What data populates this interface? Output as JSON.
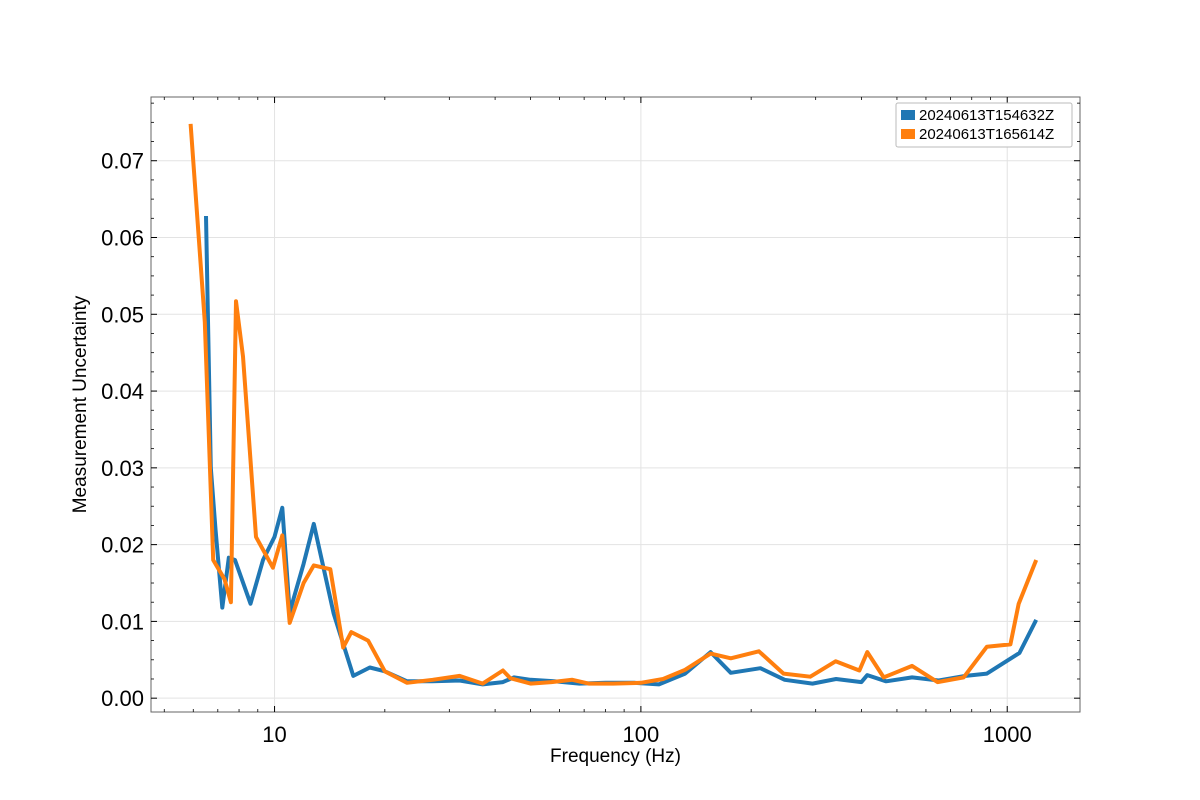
{
  "chart_data": {
    "type": "line",
    "xlabel": "Frequency (Hz)",
    "ylabel": "Measurement Uncertainty",
    "x_scale": "log",
    "xlim": [
      4.6,
      1580
    ],
    "ylim": [
      -0.0018,
      0.0783
    ],
    "grid": true,
    "legend_position": "top-right",
    "x_ticks": [
      {
        "value": 10,
        "label": "10"
      },
      {
        "value": 100,
        "label": "100"
      },
      {
        "value": 1000,
        "label": "1000"
      }
    ],
    "y_ticks": [
      {
        "value": 0.0,
        "label": "0.00"
      },
      {
        "value": 0.01,
        "label": "0.01"
      },
      {
        "value": 0.02,
        "label": "0.02"
      },
      {
        "value": 0.03,
        "label": "0.03"
      },
      {
        "value": 0.04,
        "label": "0.04"
      },
      {
        "value": 0.05,
        "label": "0.05"
      },
      {
        "value": 0.06,
        "label": "0.06"
      },
      {
        "value": 0.07,
        "label": "0.07"
      }
    ],
    "series": [
      {
        "name": "20240613T154632Z",
        "color": "#1f77b4",
        "points": [
          [
            6.5,
            0.0628
          ],
          [
            6.7,
            0.03
          ],
          [
            6.9,
            0.022
          ],
          [
            7.2,
            0.0118
          ],
          [
            7.5,
            0.0183
          ],
          [
            7.8,
            0.018
          ],
          [
            8.6,
            0.0123
          ],
          [
            9.3,
            0.018
          ],
          [
            10.0,
            0.021
          ],
          [
            10.5,
            0.0248
          ],
          [
            11.0,
            0.0112
          ],
          [
            12.0,
            0.0175
          ],
          [
            12.8,
            0.0227
          ],
          [
            14.5,
            0.011
          ],
          [
            16.4,
            0.0029
          ],
          [
            18.2,
            0.004
          ],
          [
            20.0,
            0.0035
          ],
          [
            23.0,
            0.0022
          ],
          [
            27.0,
            0.0022
          ],
          [
            32.0,
            0.0023
          ],
          [
            37.0,
            0.0018
          ],
          [
            42.0,
            0.0021
          ],
          [
            45.0,
            0.0027
          ],
          [
            50.0,
            0.0024
          ],
          [
            58.0,
            0.0022
          ],
          [
            68.0,
            0.0019
          ],
          [
            80.0,
            0.002
          ],
          [
            96.0,
            0.002
          ],
          [
            112.0,
            0.0018
          ],
          [
            132.0,
            0.0032
          ],
          [
            155.0,
            0.006
          ],
          [
            176.0,
            0.0033
          ],
          [
            212.0,
            0.0039
          ],
          [
            247.0,
            0.0024
          ],
          [
            294.0,
            0.0019
          ],
          [
            341.0,
            0.0025
          ],
          [
            400.0,
            0.0021
          ],
          [
            415.0,
            0.003
          ],
          [
            467.0,
            0.0022
          ],
          [
            550.0,
            0.0027
          ],
          [
            650.0,
            0.0023
          ],
          [
            770.0,
            0.0029
          ],
          [
            880.0,
            0.0032
          ],
          [
            1080.0,
            0.0059
          ],
          [
            1200.0,
            0.0102
          ]
        ]
      },
      {
        "name": "20240613T165614Z",
        "color": "#ff7f0e",
        "points": [
          [
            5.9,
            0.0748
          ],
          [
            6.45,
            0.049
          ],
          [
            6.8,
            0.018
          ],
          [
            7.3,
            0.0155
          ],
          [
            7.6,
            0.0125
          ],
          [
            7.85,
            0.0517
          ],
          [
            8.2,
            0.0445
          ],
          [
            8.6,
            0.031
          ],
          [
            8.9,
            0.021
          ],
          [
            9.9,
            0.017
          ],
          [
            10.5,
            0.0212
          ],
          [
            11.0,
            0.0098
          ],
          [
            12.0,
            0.015
          ],
          [
            12.8,
            0.0173
          ],
          [
            14.2,
            0.0168
          ],
          [
            15.4,
            0.0066
          ],
          [
            16.2,
            0.0086
          ],
          [
            18.0,
            0.0075
          ],
          [
            20.0,
            0.0035
          ],
          [
            23.0,
            0.002
          ],
          [
            27.0,
            0.0024
          ],
          [
            32.0,
            0.0029
          ],
          [
            37.0,
            0.0019
          ],
          [
            42.0,
            0.0036
          ],
          [
            44.0,
            0.0026
          ],
          [
            50.0,
            0.0019
          ],
          [
            57.0,
            0.0021
          ],
          [
            65.0,
            0.0024
          ],
          [
            72.0,
            0.0019
          ],
          [
            84.0,
            0.0019
          ],
          [
            100.0,
            0.002
          ],
          [
            115.0,
            0.0025
          ],
          [
            132.0,
            0.0037
          ],
          [
            155.0,
            0.0058
          ],
          [
            176.0,
            0.0052
          ],
          [
            210.0,
            0.0061
          ],
          [
            245.0,
            0.0032
          ],
          [
            290.0,
            0.0028
          ],
          [
            340.0,
            0.0048
          ],
          [
            395.0,
            0.0036
          ],
          [
            415.0,
            0.006
          ],
          [
            460.0,
            0.0027
          ],
          [
            550.0,
            0.0042
          ],
          [
            645.0,
            0.0021
          ],
          [
            760.0,
            0.0027
          ],
          [
            880.0,
            0.0067
          ],
          [
            1020.0,
            0.007
          ],
          [
            1075.0,
            0.0123
          ],
          [
            1200.0,
            0.018
          ]
        ]
      }
    ]
  }
}
